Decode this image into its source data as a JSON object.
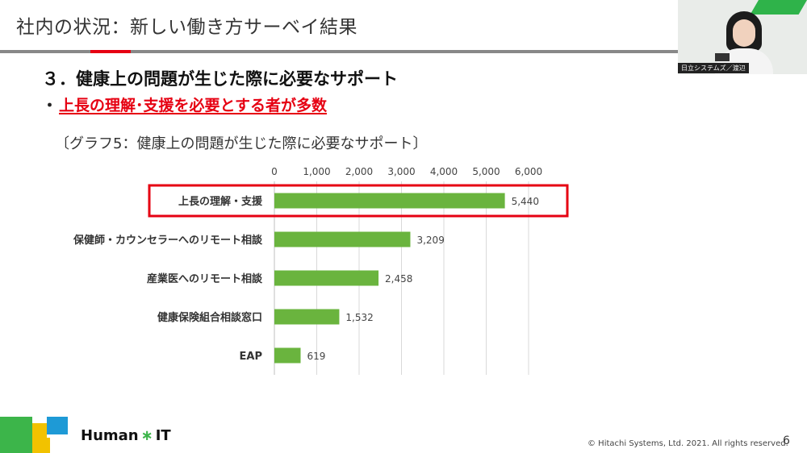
{
  "header": {
    "title": "社内の状況：新しい働き方サーベイ結果"
  },
  "webcam": {
    "nameplate": "日立システムズ／渡辺"
  },
  "section": {
    "title": "３．健康上の問題が生じた際に必要なサポート",
    "bullet_mark": "・",
    "bullet_text": "上長の理解･支援を必要とする者が多数"
  },
  "caption": "〔グラフ5：健康上の問題が生じた際に必要なサポート〕",
  "chart_data": {
    "type": "bar",
    "orientation": "horizontal",
    "categories": [
      "上長の理解・支援",
      "保健師・カウンセラーへのリモート相談",
      "産業医へのリモート相談",
      "健康保険組合相談窓口",
      "EAP"
    ],
    "values": [
      5440,
      3209,
      2458,
      1532,
      619
    ],
    "value_labels": [
      "5,440",
      "3,209",
      "2,458",
      "1,532",
      "619"
    ],
    "xticks": [
      "0",
      "1,000",
      "2,000",
      "3,000",
      "4,000",
      "5,000",
      "6,000"
    ],
    "xlim": [
      0,
      6000
    ],
    "grid": true,
    "highlighted_category": "上長の理解・支援",
    "bar_color": "#6ab43e",
    "highlight_color": "#e60012"
  },
  "footer": {
    "brand_left": "Human",
    "brand_star": "∗",
    "brand_right": "IT",
    "copyright": "© Hitachi Systems, Ltd. 2021. All rights reserved.",
    "page_number": "6"
  }
}
